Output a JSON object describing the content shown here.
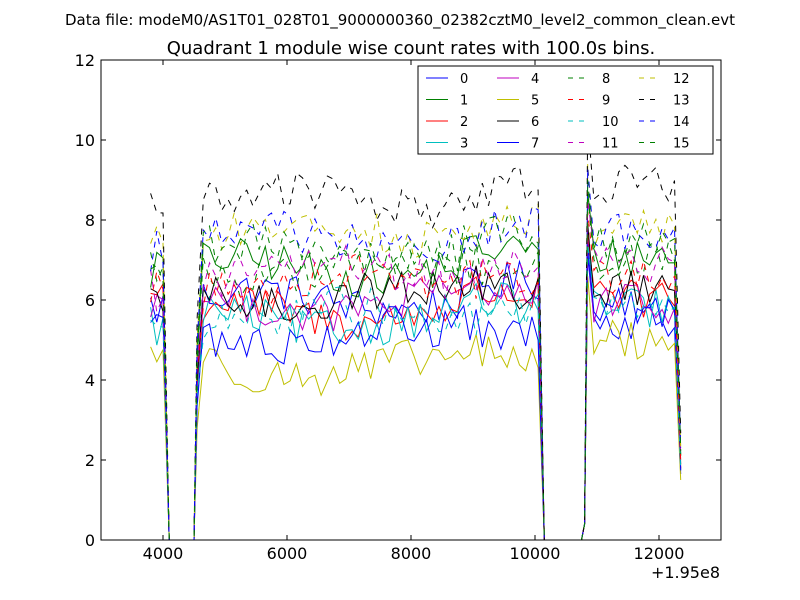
{
  "figure": {
    "suptitle": "Data file: modeM0/AS1T01_028T01_9000000360_02382cztM0_level2_common_clean.evt"
  },
  "chart_data": {
    "type": "line",
    "title": "Quadrant 1 module wise count rates with 100.0s bins.",
    "xlabel": "",
    "ylabel": "",
    "x_offset_label": "+1.95e8",
    "xlim": [
      3000,
      13000
    ],
    "ylim": [
      0,
      12
    ],
    "xticks": [
      4000,
      6000,
      8000,
      10000,
      12000
    ],
    "yticks": [
      0,
      2,
      4,
      6,
      8,
      10,
      12
    ],
    "grid": false,
    "legend_position": "top-right",
    "x_segments": [
      {
        "start": 3800,
        "end": 4000
      },
      {
        "start": 4550,
        "end": 10050
      },
      {
        "start": 10850,
        "end": 12350
      }
    ],
    "gaps": [
      [
        4100,
        4500
      ],
      [
        10150,
        10750
      ]
    ],
    "series": [
      {
        "name": "0",
        "color": "#0000ff",
        "dash": "solid",
        "levels": [
          5.8,
          6.0,
          5.5
        ]
      },
      {
        "name": "1",
        "color": "#008000",
        "dash": "solid",
        "levels": [
          6.8,
          6.8,
          7.1
        ]
      },
      {
        "name": "2",
        "color": "#ff0000",
        "dash": "solid",
        "levels": [
          6.2,
          5.7,
          6.0
        ]
      },
      {
        "name": "3",
        "color": "#00bfbf",
        "dash": "solid",
        "levels": [
          5.4,
          5.5,
          5.8
        ]
      },
      {
        "name": "4",
        "color": "#bf00bf",
        "dash": "solid",
        "levels": [
          5.9,
          5.9,
          5.9
        ]
      },
      {
        "name": "5",
        "color": "#bfbf00",
        "dash": "solid",
        "levels": [
          4.7,
          4.3,
          5.0
        ]
      },
      {
        "name": "6",
        "color": "#000000",
        "dash": "solid",
        "levels": [
          5.7,
          6.1,
          6.3
        ]
      },
      {
        "name": "7",
        "color": "#0000ff",
        "dash": "solid",
        "levels": [
          5.6,
          5.1,
          5.8
        ]
      },
      {
        "name": "8",
        "color": "#008000",
        "dash": "dashed",
        "levels": [
          6.9,
          6.8,
          7.0
        ]
      },
      {
        "name": "9",
        "color": "#ff0000",
        "dash": "dashed",
        "levels": [
          6.4,
          6.5,
          6.6
        ]
      },
      {
        "name": "10",
        "color": "#00bfbf",
        "dash": "dashed",
        "levels": [
          5.5,
          5.6,
          5.8
        ]
      },
      {
        "name": "11",
        "color": "#bf00bf",
        "dash": "dashed",
        "levels": [
          6.3,
          6.7,
          6.9
        ]
      },
      {
        "name": "12",
        "color": "#bfbf00",
        "dash": "dashed",
        "levels": [
          7.7,
          7.7,
          7.8
        ]
      },
      {
        "name": "13",
        "color": "#000000",
        "dash": "dashed",
        "levels": [
          8.5,
          8.5,
          8.9
        ]
      },
      {
        "name": "14",
        "color": "#0000ff",
        "dash": "dashed",
        "levels": [
          7.3,
          7.5,
          7.7
        ]
      },
      {
        "name": "15",
        "color": "#008000",
        "dash": "dashed",
        "levels": [
          6.9,
          7.2,
          7.4
        ]
      }
    ]
  }
}
